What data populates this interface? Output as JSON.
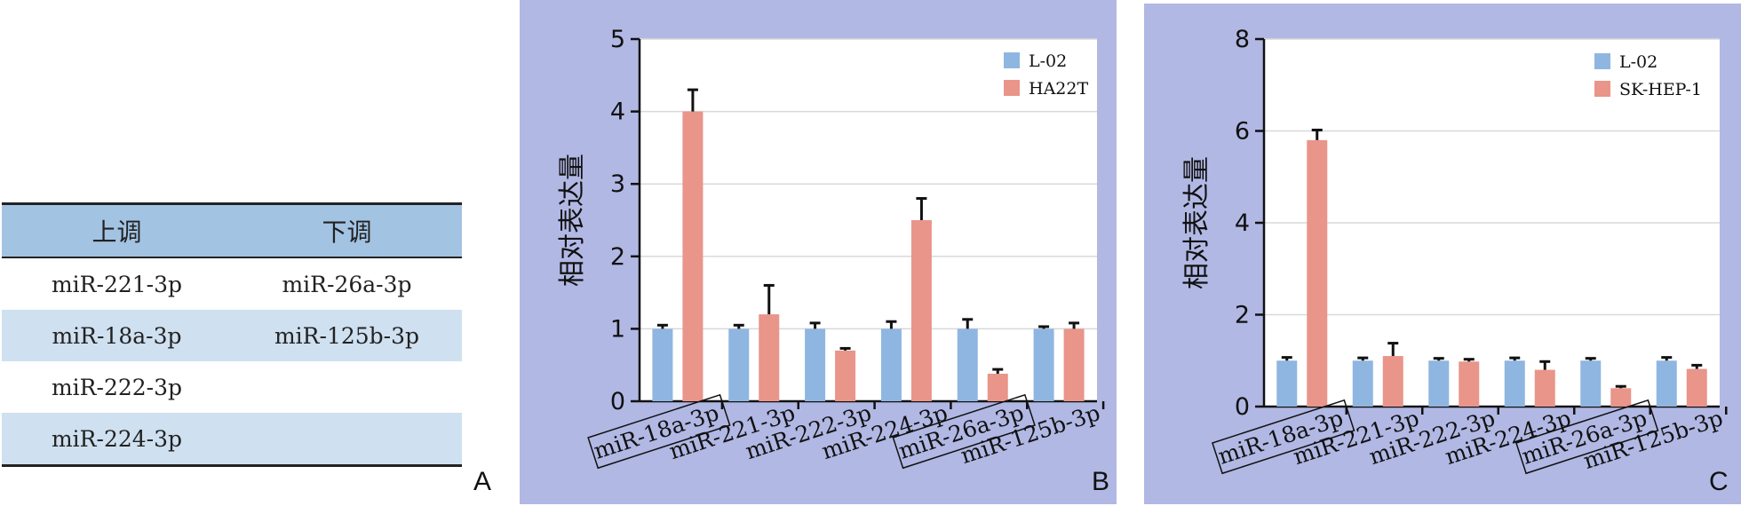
{
  "table": {
    "headers": [
      "上调",
      "下调"
    ],
    "rows": [
      [
        "miR-221-3p",
        "miR-26a-3p"
      ],
      [
        "miR-18a-3p",
        "miR-125b-3p"
      ],
      [
        "miR-222-3p",
        ""
      ],
      [
        "miR-224-3p",
        ""
      ]
    ]
  },
  "panels": {
    "a": "A",
    "b": "B",
    "c": "C"
  },
  "colors": {
    "control": "#8fb6e0",
    "tumor": "#e9958a",
    "panel_bg": "#b1b8e4"
  },
  "chart_data": [
    {
      "type": "bar",
      "panel": "B",
      "ylabel": "相对表达量",
      "ylim": [
        0,
        5
      ],
      "yticks": [
        0,
        1,
        2,
        3,
        4,
        5
      ],
      "grid": true,
      "legend_position": "top-right",
      "categories": [
        "miR-18a-3p",
        "miR-221-3p",
        "miR-222-3p",
        "miR-224-3p",
        "miR-26a-3p",
        "miR-125b-3p"
      ],
      "boxed_categories": [
        "miR-18a-3p",
        "miR-26a-3p"
      ],
      "series": [
        {
          "name": "L-02",
          "values": [
            1.0,
            1.0,
            1.0,
            1.0,
            1.0,
            1.0
          ],
          "errors": [
            0.05,
            0.05,
            0.08,
            0.1,
            0.13,
            0.03
          ]
        },
        {
          "name": "HA22T",
          "values": [
            4.0,
            1.2,
            0.7,
            2.5,
            0.38,
            1.0
          ],
          "errors": [
            0.3,
            0.4,
            0.03,
            0.3,
            0.06,
            0.08
          ]
        }
      ]
    },
    {
      "type": "bar",
      "panel": "C",
      "ylabel": "相对表达量",
      "ylim": [
        0,
        8
      ],
      "yticks": [
        0,
        2,
        4,
        6,
        8
      ],
      "grid": true,
      "legend_position": "top-right",
      "categories": [
        "miR-18a-3p",
        "miR-221-3p",
        "miR-222-3p",
        "miR-224-3p",
        "miR-26a-3p",
        "miR-125b-3p"
      ],
      "boxed_categories": [
        "miR-18a-3p",
        "miR-26a-3p"
      ],
      "series": [
        {
          "name": "L-02",
          "values": [
            1.0,
            1.0,
            1.0,
            1.0,
            1.0,
            1.0
          ],
          "errors": [
            0.07,
            0.06,
            0.05,
            0.06,
            0.05,
            0.07
          ]
        },
        {
          "name": "SK-HEP-1",
          "values": [
            5.8,
            1.1,
            0.98,
            0.8,
            0.4,
            0.82
          ],
          "errors": [
            0.22,
            0.28,
            0.05,
            0.18,
            0.04,
            0.08
          ]
        }
      ]
    }
  ]
}
